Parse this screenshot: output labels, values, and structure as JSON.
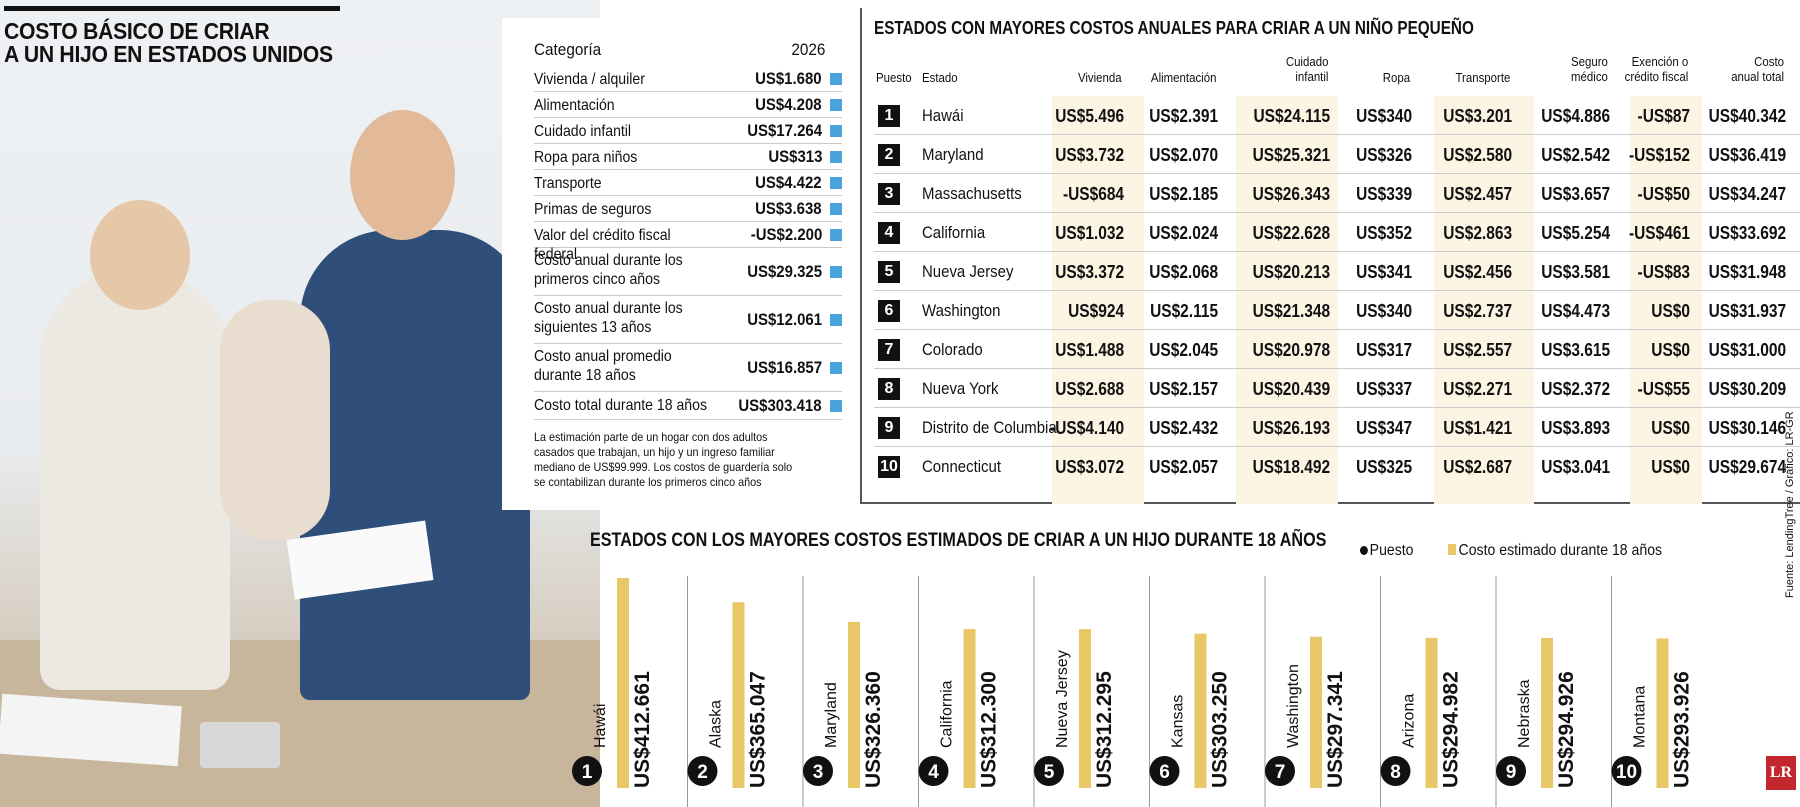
{
  "header": {
    "title_line1": "COSTO BÁSICO DE CRIAR",
    "title_line2": "A UN HIJO EN ESTADOS UNIDOS"
  },
  "basic_table": {
    "col_category": "Categoría",
    "col_year": "2026",
    "rows": [
      {
        "label": "Vivienda / alquiler",
        "value": "US$1.680"
      },
      {
        "label": "Alimentación",
        "value": "US$4.208"
      },
      {
        "label": "Cuidado infantil",
        "value": "US$17.264"
      },
      {
        "label": "Ropa para niños",
        "value": "US$313"
      },
      {
        "label": "Transporte",
        "value": "US$4.422"
      },
      {
        "label": "Primas de seguros",
        "value": "US$3.638"
      },
      {
        "label": "Valor del crédito fiscal federal",
        "value": "-US$2.200"
      },
      {
        "label": "Costo anual durante los primeros cinco años",
        "value": "US$29.325"
      },
      {
        "label": "Costo anual durante los siguientes 13 años",
        "value": "US$12.061"
      },
      {
        "label": "Costo anual promedio durante 18 años",
        "value": "US$16.857"
      },
      {
        "label": "Costo total durante 18 años",
        "value": "US$303.418"
      }
    ],
    "note": "La estimación parte de un hogar con dos adultos casados que trabajan, un hijo y un ingreso familiar mediano de US$99.999. Los costos de guardería solo se contabilizan durante los primeros cinco años",
    "marker_color": "#4aa3dc"
  },
  "annual_table": {
    "title": "ESTADOS CON MAYORES COSTOS ANUALES PARA CRIAR A UN NIÑO PEQUEÑO",
    "headers": {
      "rank": "Puesto",
      "state": "Estado",
      "housing": "Vivienda",
      "food": "Alimentación",
      "childcare_1": "Cuidado",
      "childcare_2": "infantil",
      "clothing": "Ropa",
      "transport": "Transporte",
      "insurance_1": "Seguro",
      "insurance_2": "médico",
      "tax_1": "Exención o",
      "tax_2": "crédito fiscal",
      "total_1": "Costo",
      "total_2": "anual total"
    },
    "rows": [
      {
        "rank": "1",
        "state": "Hawái",
        "housing": "US$5.496",
        "food": "US$2.391",
        "childcare": "US$24.115",
        "clothing": "US$340",
        "transport": "US$3.201",
        "insurance": "US$4.886",
        "tax": "-US$87",
        "total": "US$40.342"
      },
      {
        "rank": "2",
        "state": "Maryland",
        "housing": "US$3.732",
        "food": "US$2.070",
        "childcare": "US$25.321",
        "clothing": "US$326",
        "transport": "US$2.580",
        "insurance": "US$2.542",
        "tax": "-US$152",
        "total": "US$36.419"
      },
      {
        "rank": "3",
        "state": "Massachusetts",
        "housing": "-US$684",
        "food": "US$2.185",
        "childcare": "US$26.343",
        "clothing": "US$339",
        "transport": "US$2.457",
        "insurance": "US$3.657",
        "tax": "-US$50",
        "total": "US$34.247"
      },
      {
        "rank": "4",
        "state": "California",
        "housing": "US$1.032",
        "food": "US$2.024",
        "childcare": "US$22.628",
        "clothing": "US$352",
        "transport": "US$2.863",
        "insurance": "US$5.254",
        "tax": "-US$461",
        "total": "US$33.692"
      },
      {
        "rank": "5",
        "state": "Nueva Jersey",
        "housing": "US$3.372",
        "food": "US$2.068",
        "childcare": "US$20.213",
        "clothing": "US$341",
        "transport": "US$2.456",
        "insurance": "US$3.581",
        "tax": "-US$83",
        "total": "US$31.948"
      },
      {
        "rank": "6",
        "state": "Washington",
        "housing": "US$924",
        "food": "US$2.115",
        "childcare": "US$21.348",
        "clothing": "US$340",
        "transport": "US$2.737",
        "insurance": "US$4.473",
        "tax": "US$0",
        "total": "US$31.937"
      },
      {
        "rank": "7",
        "state": "Colorado",
        "housing": "US$1.488",
        "food": "US$2.045",
        "childcare": "US$20.978",
        "clothing": "US$317",
        "transport": "US$2.557",
        "insurance": "US$3.615",
        "tax": "US$0",
        "total": "US$31.000"
      },
      {
        "rank": "8",
        "state": "Nueva York",
        "housing": "US$2.688",
        "food": "US$2.157",
        "childcare": "US$20.439",
        "clothing": "US$337",
        "transport": "US$2.271",
        "insurance": "US$2.372",
        "tax": "-US$55",
        "total": "US$30.209"
      },
      {
        "rank": "9",
        "state": "Distrito de Columbia",
        "housing": "-US$4.140",
        "food": "US$2.432",
        "childcare": "US$26.193",
        "clothing": "US$347",
        "transport": "US$1.421",
        "insurance": "US$3.893",
        "tax": "US$0",
        "total": "US$30.146"
      },
      {
        "rank": "10",
        "state": "Connecticut",
        "housing": "US$3.072",
        "food": "US$2.057",
        "childcare": "US$18.492",
        "clothing": "US$325",
        "transport": "US$2.687",
        "insurance": "US$3.041",
        "tax": "US$0",
        "total": "US$29.674"
      }
    ],
    "shade_color": "#fdf5e4"
  },
  "chart_data": {
    "type": "bar",
    "title": "ESTADOS CON LOS MAYORES COSTOS ESTIMADOS DE CRIAR A UN HIJO DURANTE 18 AÑOS",
    "legend": {
      "rank": "Puesto",
      "cost": "Costo estimado durante 18 años"
    },
    "categories": [
      "Hawái",
      "Alaska",
      "Maryland",
      "California",
      "Nueva Jersey",
      "Kansas",
      "Washington",
      "Arizona",
      "Nebraska",
      "Montana"
    ],
    "ranks": [
      "1",
      "2",
      "3",
      "4",
      "5",
      "6",
      "7",
      "8",
      "9",
      "10"
    ],
    "values": [
      412661,
      365047,
      326360,
      312300,
      312295,
      303250,
      297341,
      294982,
      294926,
      293926
    ],
    "value_labels": [
      "US$412.661",
      "US$365.047",
      "US$326.360",
      "US$312.300",
      "US$312.295",
      "US$303.250",
      "US$297.341",
      "US$294.982",
      "US$294.926",
      "US$293.926"
    ],
    "ylim": [
      0,
      412661
    ],
    "bar_color": "#e8c766"
  },
  "footer": {
    "source": "Fuente: LendingTree / Gráfico: LR-GR",
    "logo": "LR"
  }
}
